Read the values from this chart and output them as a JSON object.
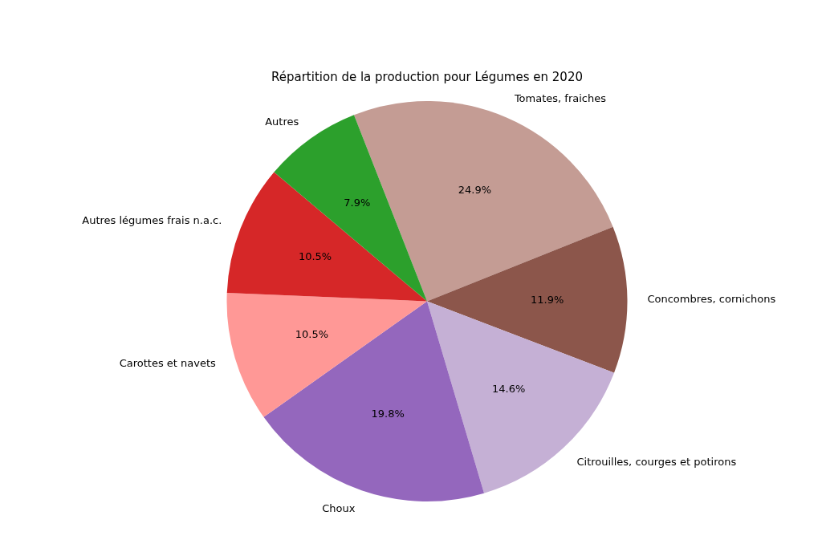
{
  "chart_data": {
    "type": "pie",
    "title": "Répartition de la production pour Légumes en 2020",
    "categories": [
      "Tomates, fraiches",
      "Concombres, cornichons",
      "Citrouilles, courges et potirons",
      "Choux",
      "Carottes et navets",
      "Autres légumes frais n.a.c.",
      "Autres"
    ],
    "values": [
      24.9,
      11.9,
      14.6,
      19.8,
      10.5,
      10.5,
      7.9
    ],
    "value_labels": [
      "24.9%",
      "11.9%",
      "14.6%",
      "19.8%",
      "10.5%",
      "10.5%",
      "7.9%"
    ],
    "colors": [
      "#c49c94",
      "#8c564b",
      "#c5b0d5",
      "#9467bd",
      "#ff9896",
      "#d62728",
      "#2ca02c"
    ],
    "legend": false
  }
}
